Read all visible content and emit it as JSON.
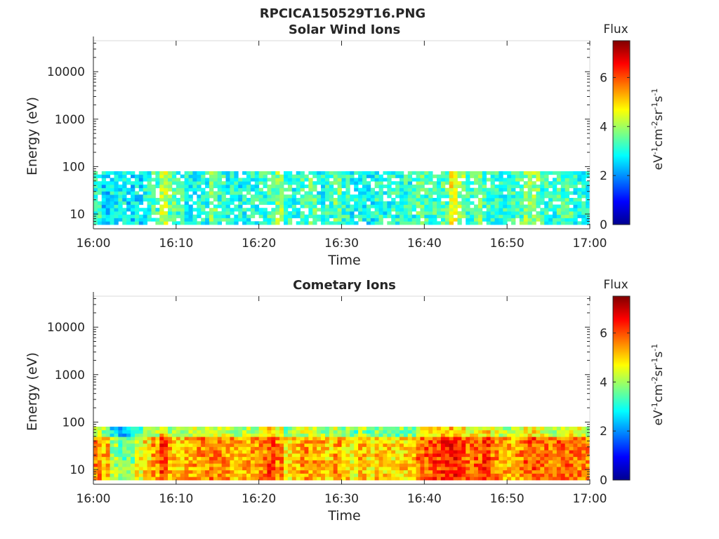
{
  "figure_title": "RPCICA150529T16.PNG",
  "chart_data": [
    {
      "type": "heatmap",
      "title": "Solar Wind Ions",
      "xlabel": "Time",
      "ylabel": "Energy (eV)",
      "x_range": [
        "16:00",
        "17:00"
      ],
      "x_ticks": [
        "16:00",
        "16:10",
        "16:20",
        "16:30",
        "16:40",
        "16:50",
        "17:00"
      ],
      "y_scale": "log",
      "y_range": [
        6,
        45000
      ],
      "y_ticks": [
        "10",
        "100",
        "1000",
        "10000"
      ],
      "energy_range_filled": [
        6,
        80
      ],
      "colorbar": {
        "title": "Flux",
        "label": "eV-1cm-2sr-1s-1",
        "range": [
          0,
          7.5
        ],
        "ticks": [
          "0",
          "2",
          "4",
          "6"
        ],
        "colormap": "jet"
      },
      "flux_profile_by_time": [
        3.1,
        2.6,
        2.8,
        2.9,
        2.6,
        2.7,
        3.0,
        3.3,
        4.2,
        3.5,
        3.2,
        3.0,
        2.9,
        3.0,
        3.6,
        3.2,
        3.0,
        2.9,
        3.0,
        3.1,
        3.1,
        3.3,
        3.8,
        3.1,
        3.0,
        3.3,
        3.5,
        3.0,
        3.1,
        3.6,
        3.2,
        2.9,
        3.0,
        2.8,
        3.1,
        2.9,
        3.1,
        3.1,
        3.0,
        3.5,
        3.2,
        3.3,
        3.4,
        4.6,
        3.9,
        3.2,
        3.7,
        3.3,
        3.1,
        3.1,
        3.2,
        3.4,
        3.8,
        3.8,
        3.2,
        3.0,
        3.3,
        3.4,
        3.0,
        3.1
      ]
    },
    {
      "type": "heatmap",
      "title": "Cometary Ions",
      "xlabel": "Time",
      "ylabel": "Energy (eV)",
      "x_range": [
        "16:00",
        "17:00"
      ],
      "x_ticks": [
        "16:00",
        "16:10",
        "16:20",
        "16:30",
        "16:40",
        "16:50",
        "17:00"
      ],
      "y_scale": "log",
      "y_range": [
        6,
        45000
      ],
      "y_ticks": [
        "10",
        "100",
        "1000",
        "10000"
      ],
      "energy_range_filled": [
        6,
        80
      ],
      "colorbar": {
        "title": "Flux",
        "label": "eV-1cm-2sr-1s-1",
        "range": [
          0,
          7.5
        ],
        "ticks": [
          "0",
          "2",
          "4",
          "6"
        ],
        "colormap": "jet"
      },
      "flux_profile_by_time": [
        5.6,
        5.2,
        4.0,
        3.6,
        3.8,
        4.6,
        4.9,
        5.4,
        6.2,
        5.2,
        5.0,
        5.3,
        5.4,
        5.6,
        5.7,
        5.6,
        5.4,
        5.2,
        5.3,
        5.4,
        5.6,
        6.1,
        5.6,
        4.8,
        5.2,
        5.5,
        5.4,
        5.2,
        5.0,
        5.4,
        5.0,
        4.6,
        5.2,
        4.8,
        5.1,
        5.0,
        4.8,
        5.0,
        5.0,
        5.7,
        5.9,
        6.1,
        6.3,
        6.4,
        6.0,
        5.8,
        5.9,
        6.1,
        5.6,
        5.3,
        5.2,
        5.5,
        5.9,
        6.0,
        5.7,
        5.4,
        5.8,
        5.9,
        5.6,
        5.5
      ]
    }
  ]
}
